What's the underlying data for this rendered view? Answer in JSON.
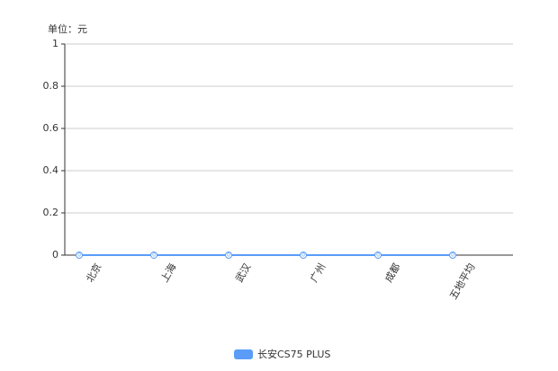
{
  "chart_data": {
    "type": "line",
    "unit_label": "单位：元",
    "categories": [
      "北京",
      "上海",
      "武汉",
      "广州",
      "成都",
      "五地平均"
    ],
    "series": [
      {
        "name": "长安CS75 PLUS",
        "color": "#5a9cf8",
        "values": [
          0,
          0,
          0,
          0,
          0,
          0
        ]
      }
    ],
    "ylim": [
      0,
      1
    ],
    "yticks": [
      0,
      0.2,
      0.4,
      0.6,
      0.8,
      1
    ],
    "grid": true,
    "legend": "bottom"
  }
}
